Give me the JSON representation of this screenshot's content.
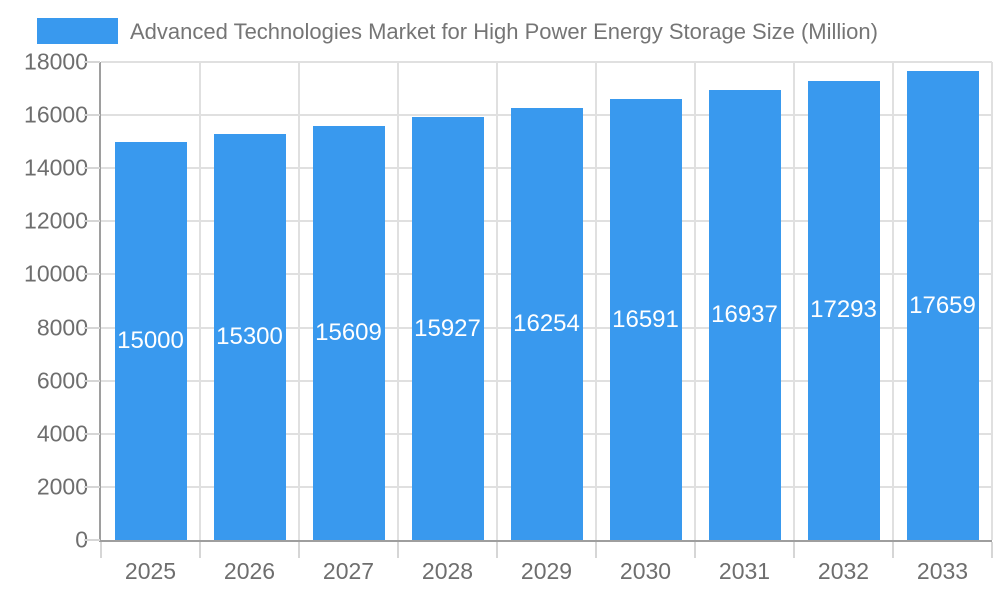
{
  "title": "Advanced Technologies Market for High Power Energy Storage Size (Million)",
  "colors": {
    "bar": "#3999EE",
    "grid": "#E0E0E0",
    "axis": "#9E9E9E",
    "tick": "#D6D6D6",
    "title_text": "#757575",
    "axis_label_text": "#6E6E6E",
    "bar_value_text": "#FFFFFF",
    "background": "#FFFFFF"
  },
  "legend": {
    "position": "top-left",
    "swatch_color": "#3999EE",
    "label": "Advanced Technologies Market for High Power Energy Storage Size (Million)"
  },
  "chart_data": {
    "type": "bar",
    "title": "Advanced Technologies Market for High Power Energy Storage Size (Million)",
    "categories": [
      "2025",
      "2026",
      "2027",
      "2028",
      "2029",
      "2030",
      "2031",
      "2032",
      "2033"
    ],
    "values": [
      15000,
      15300,
      15609,
      15927,
      16254,
      16591,
      16937,
      17293,
      17659
    ],
    "bar_value_labels": [
      "15000",
      "15300",
      "15609",
      "15927",
      "16254",
      "16591",
      "16937",
      "17293",
      "17659"
    ],
    "xlabel": "",
    "ylabel": "",
    "ylim": [
      0,
      18000
    ],
    "ytick_step": 2000,
    "ytick_labels": [
      "0",
      "2000",
      "4000",
      "6000",
      "8000",
      "10000",
      "12000",
      "14000",
      "16000",
      "18000"
    ],
    "grid": true,
    "legend_position": "top-left",
    "bar_color": "#3999EE",
    "value_labels_inside_bars": true
  }
}
